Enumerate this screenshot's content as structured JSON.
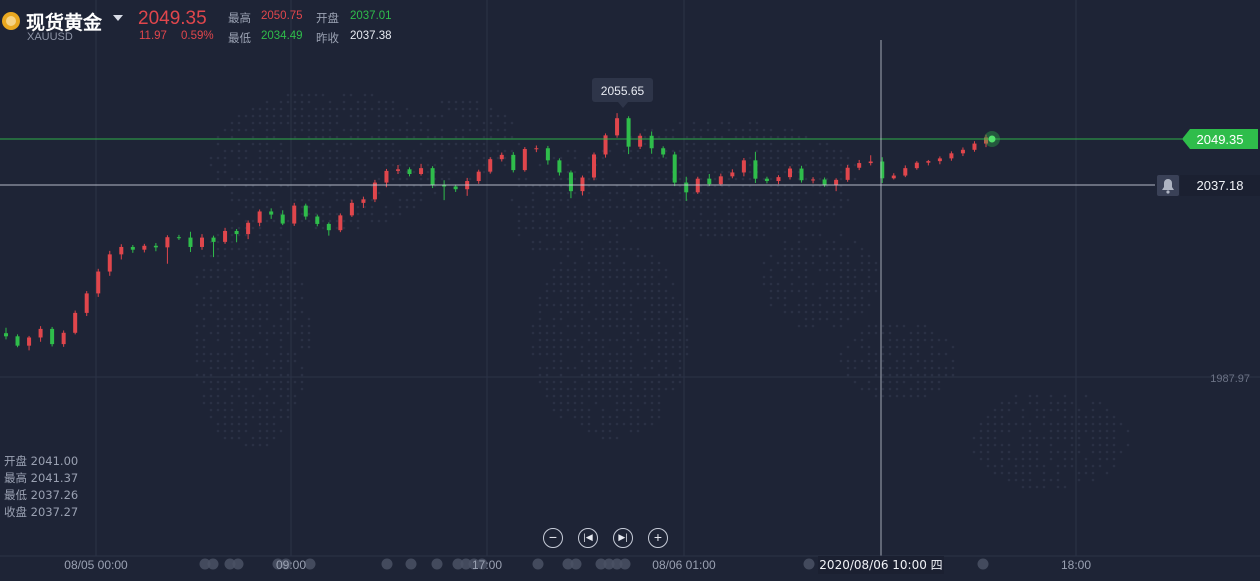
{
  "header": {
    "symbol_name": "现货黄金",
    "symbol_code": "XAUUSD",
    "last_price": "2049.35",
    "change": "11.97",
    "change_pct": "0.59%",
    "high_label": "最高",
    "high_value": "2050.75",
    "low_label": "最低",
    "low_value": "2034.49",
    "open_label": "开盘",
    "open_value": "2037.01",
    "prev_label": "昨收",
    "prev_value": "2037.38"
  },
  "ohlc_legend": {
    "open": "开盘 2041.00",
    "high": "最高 2041.37",
    "low": "最低 2037.26",
    "close": "收盘 2037.27"
  },
  "colors": {
    "up": "#e0464c",
    "down": "#2fbd4b",
    "bg": "#1e2436",
    "grid": "#2c3347",
    "last_price": "#2fbd4b"
  },
  "chart_data": {
    "type": "candlestick",
    "price_axis": {
      "min": 1970,
      "max": 2065,
      "labeled_ticks": [
        1987.97
      ]
    },
    "last_price_tag": "2049.35",
    "crosshair_price_tag": "2037.18",
    "max_annotation": "2055.65",
    "time_labels": [
      "08/05 00:00",
      "09:00",
      "17:00",
      "08/06 01:00",
      "2020/08/06 10:00 四",
      "18:00"
    ],
    "candles_ohlc": [
      [
        1999.2,
        2000.6,
        1997.6,
        1998.4
      ],
      [
        1998.4,
        1998.9,
        1995.6,
        1996.0
      ],
      [
        1996.0,
        1998.5,
        1994.8,
        1998.1
      ],
      [
        1998.1,
        2001.0,
        1997.0,
        2000.3
      ],
      [
        2000.3,
        2000.8,
        1995.8,
        1996.4
      ],
      [
        1996.4,
        1999.9,
        1995.7,
        1999.3
      ],
      [
        1999.3,
        2005.0,
        1998.9,
        2004.4
      ],
      [
        2004.4,
        2010.0,
        2003.6,
        2009.4
      ],
      [
        2009.4,
        2015.7,
        2008.5,
        2015.0
      ],
      [
        2015.0,
        2020.3,
        2013.9,
        2019.4
      ],
      [
        2019.4,
        2022.0,
        2018.1,
        2021.3
      ],
      [
        2021.3,
        2021.8,
        2019.8,
        2020.6
      ],
      [
        2020.6,
        2022.1,
        2019.9,
        2021.6
      ],
      [
        2021.6,
        2022.3,
        2020.2,
        2021.2
      ],
      [
        2021.2,
        2024.3,
        2017.0,
        2023.8
      ],
      [
        2023.8,
        2024.4,
        2023.1,
        2023.7
      ],
      [
        2023.7,
        2025.2,
        2020.0,
        2021.3
      ],
      [
        2021.3,
        2024.6,
        2020.6,
        2023.7
      ],
      [
        2023.7,
        2024.2,
        2018.7,
        2022.6
      ],
      [
        2022.6,
        2026.2,
        2022.1,
        2025.4
      ],
      [
        2025.4,
        2025.9,
        2022.5,
        2024.6
      ],
      [
        2024.6,
        2028.1,
        2023.3,
        2027.5
      ],
      [
        2027.5,
        2030.9,
        2026.6,
        2030.4
      ],
      [
        2030.4,
        2031.2,
        2028.5,
        2029.6
      ],
      [
        2029.6,
        2030.7,
        2026.9,
        2027.3
      ],
      [
        2027.3,
        2032.6,
        2026.7,
        2031.9
      ],
      [
        2031.9,
        2032.4,
        2028.3,
        2029.1
      ],
      [
        2029.1,
        2029.6,
        2026.6,
        2027.2
      ],
      [
        2027.2,
        2027.6,
        2024.2,
        2025.6
      ],
      [
        2025.6,
        2029.9,
        2025.1,
        2029.4
      ],
      [
        2029.4,
        2033.4,
        2029.0,
        2032.6
      ],
      [
        2032.6,
        2034.2,
        2031.3,
        2033.5
      ],
      [
        2033.5,
        2038.5,
        2032.8,
        2037.8
      ],
      [
        2037.8,
        2041.3,
        2036.6,
        2040.8
      ],
      [
        2040.8,
        2042.3,
        2040.0,
        2041.2
      ],
      [
        2041.2,
        2041.7,
        2039.4,
        2040.0
      ],
      [
        2040.0,
        2042.6,
        2039.6,
        2041.5
      ],
      [
        2041.5,
        2042.0,
        2036.4,
        2037.2
      ],
      [
        2037.2,
        2038.4,
        2033.3,
        2036.8
      ],
      [
        2036.8,
        2037.3,
        2035.4,
        2036.1
      ],
      [
        2036.1,
        2039.0,
        2034.4,
        2038.2
      ],
      [
        2038.2,
        2041.1,
        2037.5,
        2040.6
      ],
      [
        2040.6,
        2044.3,
        2040.1,
        2043.8
      ],
      [
        2043.8,
        2045.5,
        2043.2,
        2044.9
      ],
      [
        2044.9,
        2045.6,
        2040.4,
        2041.0
      ],
      [
        2041.0,
        2046.9,
        2040.6,
        2046.4
      ],
      [
        2046.4,
        2047.3,
        2045.6,
        2046.6
      ],
      [
        2046.6,
        2047.2,
        2042.4,
        2043.5
      ],
      [
        2043.5,
        2044.0,
        2039.6,
        2040.4
      ],
      [
        2040.4,
        2040.9,
        2033.8,
        2035.6
      ],
      [
        2035.6,
        2039.6,
        2034.5,
        2039.1
      ],
      [
        2039.1,
        2045.5,
        2038.4,
        2045.0
      ],
      [
        2045.0,
        2050.4,
        2044.2,
        2049.9
      ],
      [
        2049.9,
        2055.6,
        2049.3,
        2054.3
      ],
      [
        2054.3,
        2054.8,
        2045.1,
        2047.0
      ],
      [
        2047.0,
        2050.4,
        2046.4,
        2049.8
      ],
      [
        2049.8,
        2050.9,
        2045.2,
        2046.6
      ],
      [
        2046.6,
        2047.1,
        2044.2,
        2045.0
      ],
      [
        2045.0,
        2045.7,
        2036.9,
        2037.8
      ],
      [
        2037.8,
        2039.3,
        2033.1,
        2035.3
      ],
      [
        2035.3,
        2039.3,
        2034.9,
        2038.8
      ],
      [
        2038.8,
        2040.0,
        2036.9,
        2037.4
      ],
      [
        2037.4,
        2040.1,
        2037.0,
        2039.4
      ],
      [
        2039.4,
        2041.2,
        2038.9,
        2040.4
      ],
      [
        2040.4,
        2044.1,
        2039.4,
        2043.5
      ],
      [
        2043.5,
        2045.7,
        2037.7,
        2038.8
      ],
      [
        2038.8,
        2039.3,
        2037.6,
        2038.2
      ],
      [
        2038.2,
        2039.7,
        2037.4,
        2039.2
      ],
      [
        2039.2,
        2042.0,
        2038.6,
        2041.4
      ],
      [
        2041.4,
        2042.1,
        2037.8,
        2038.4
      ],
      [
        2038.4,
        2039.2,
        2037.6,
        2038.6
      ],
      [
        2038.6,
        2039.1,
        2036.7,
        2037.3
      ],
      [
        2037.3,
        2038.9,
        2035.6,
        2038.5
      ],
      [
        2038.5,
        2042.3,
        2038.0,
        2041.6
      ],
      [
        2041.6,
        2043.6,
        2041.0,
        2042.8
      ],
      [
        2042.8,
        2044.8,
        2042.2,
        2043.2
      ],
      [
        2043.2,
        2044.3,
        2037.7,
        2038.9
      ],
      [
        2038.9,
        2040.2,
        2038.6,
        2039.6
      ],
      [
        2039.6,
        2042.2,
        2039.2,
        2041.5
      ],
      [
        2041.5,
        2043.3,
        2041.1,
        2042.9
      ],
      [
        2042.9,
        2043.6,
        2042.2,
        2043.3
      ],
      [
        2043.3,
        2044.5,
        2042.5,
        2044.0
      ],
      [
        2044.0,
        2045.8,
        2043.4,
        2045.3
      ],
      [
        2045.3,
        2046.8,
        2044.6,
        2046.2
      ],
      [
        2046.2,
        2048.4,
        2045.7,
        2047.8
      ],
      [
        2047.8,
        2050.1,
        2046.9,
        2049.35
      ]
    ]
  }
}
